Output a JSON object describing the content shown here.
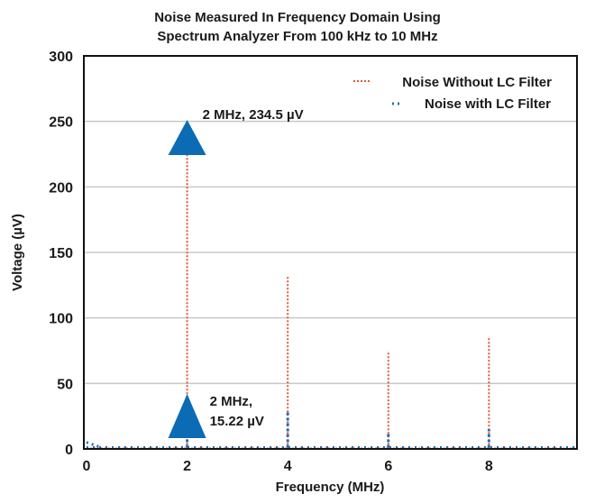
{
  "chart_data": {
    "type": "line",
    "title_lines": [
      "Noise Measured In Frequency Domain Using",
      "Spectrum Analyzer From 100 kHz to 10 MHz"
    ],
    "xlabel": "Frequency (MHz)",
    "ylabel": "Voltage (µV)",
    "xlim": [
      0,
      9.75
    ],
    "ylim": [
      0,
      300
    ],
    "xticks": [
      "0",
      "2",
      "4",
      "6",
      "8"
    ],
    "yticks": [
      "0",
      "50",
      "100",
      "150",
      "200",
      "250",
      "300"
    ],
    "grid": "horizontal",
    "legend_position": "top-right",
    "series": [
      {
        "name": "Noise Without LC Filter",
        "color": "#e0573a",
        "style": "dotted",
        "peaks": [
          {
            "x": 2,
            "y": 234.5
          },
          {
            "x": 4,
            "y": 132
          },
          {
            "x": 6,
            "y": 75
          },
          {
            "x": 8,
            "y": 85
          }
        ],
        "baseline": 0.5
      },
      {
        "name": "Noise with LC Filter",
        "color": "#1f6fb5",
        "style": "dotted",
        "peaks": [
          {
            "x": 0,
            "y": 5
          },
          {
            "x": 2,
            "y": 15.22
          },
          {
            "x": 4,
            "y": 28
          },
          {
            "x": 6,
            "y": 13
          },
          {
            "x": 8,
            "y": 15
          }
        ],
        "baseline": 1
      }
    ],
    "annotations": [
      {
        "label": "2 MHz, 234.5 µV",
        "x": 2,
        "y": 234.5,
        "marker": "triangle",
        "color": "#0b6bb5"
      },
      {
        "label_lines": [
          "2 MHz,",
          "15.22 µV"
        ],
        "x": 2,
        "y": 15.22,
        "marker": "triangle",
        "color": "#0b6bb5"
      }
    ]
  }
}
